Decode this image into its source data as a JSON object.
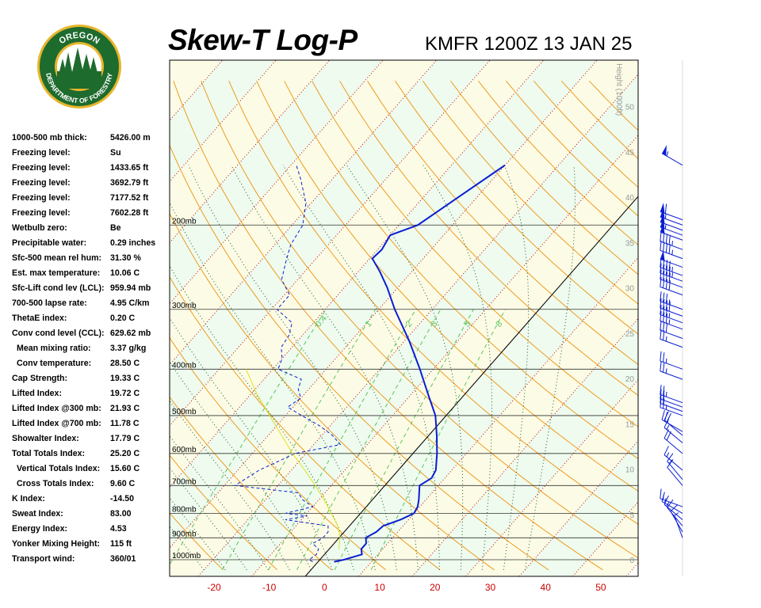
{
  "header": {
    "title": "Skew-T Log-P",
    "station": "KMFR 1200Z 13 JAN 25"
  },
  "logo": {
    "text_top": "OREGON",
    "text_bottom": "DEPARTMENT OF FORESTRY",
    "ring_color": "#1e6b2e",
    "gold_color": "#e7b52c"
  },
  "indices": [
    {
      "label": "1000-500 mb thick:",
      "value": "5426.00 m"
    },
    {
      "label": "Freezing level:",
      "value": "Su"
    },
    {
      "label": "Freezing level:",
      "value": "1433.65 ft"
    },
    {
      "label": "Freezing level:",
      "value": "3692.79 ft"
    },
    {
      "label": "Freezing level:",
      "value": "7177.52 ft"
    },
    {
      "label": "Freezing level:",
      "value": "7602.28 ft"
    },
    {
      "label": "Wetbulb zero:",
      "value": "Be"
    },
    {
      "label": "Precipitable water:",
      "value": "0.29 inches"
    },
    {
      "label": "Sfc-500 mean rel hum:",
      "value": "31.30 %"
    },
    {
      "label": "Est. max temperature:",
      "value": "10.06 C"
    },
    {
      "label": "Sfc-Lift cond lev (LCL):",
      "value": "959.94 mb"
    },
    {
      "label": "700-500 lapse rate:",
      "value": "4.95 C/km"
    },
    {
      "label": "ThetaE index:",
      "value": "0.20 C"
    },
    {
      "label": "Conv cond level (CCL):",
      "value": "629.62 mb"
    },
    {
      "label": "Mean mixing ratio:",
      "value": "3.37 g/kg",
      "indent": true
    },
    {
      "label": "Conv temperature:",
      "value": "28.50 C",
      "indent": true
    },
    {
      "label": "Cap Strength:",
      "value": "19.33 C"
    },
    {
      "label": "Lifted Index:",
      "value": "19.72 C"
    },
    {
      "label": "Lifted Index @300 mb:",
      "value": "21.93 C"
    },
    {
      "label": "Lifted Index @700 mb:",
      "value": "11.78 C"
    },
    {
      "label": "Showalter Index:",
      "value": "17.79 C"
    },
    {
      "label": "Total Totals Index:",
      "value": "25.20 C"
    },
    {
      "label": "Vertical Totals Index:",
      "value": "15.60 C",
      "indent": true
    },
    {
      "label": "Cross Totals Index:",
      "value": "9.60 C",
      "indent": true
    },
    {
      "label": "K Index:",
      "value": "-14.50"
    },
    {
      "label": "Sweat Index:",
      "value": "83.00"
    },
    {
      "label": "Energy Index:",
      "value": "4.53"
    },
    {
      "label": "Yonker Mixing Height:",
      "value": "115 ft"
    },
    {
      "label": "Transport wind:",
      "value": "360/01"
    }
  ],
  "chart_data": {
    "type": "line",
    "temperature_axis": {
      "ticks": [
        -20,
        -10,
        0,
        10,
        20,
        30,
        40,
        50
      ],
      "unit": "C",
      "color": "#cc0000"
    },
    "pressure_labels": [
      {
        "p": 200,
        "label": "200mb"
      },
      {
        "p": 300,
        "label": "300mb"
      },
      {
        "p": 400,
        "label": "400mb"
      },
      {
        "p": 500,
        "label": "500mb"
      },
      {
        "p": 600,
        "label": "600mb"
      },
      {
        "p": 700,
        "label": "700mb"
      },
      {
        "p": 800,
        "label": "800mb"
      },
      {
        "p": 900,
        "label": "900mb"
      },
      {
        "p": 1000,
        "label": "1000mb"
      }
    ],
    "height_axis": {
      "label": "Height (1000ft)",
      "ticks": [
        0,
        5,
        10,
        15,
        20,
        25,
        30,
        35,
        40,
        45,
        50
      ]
    },
    "mixing_ratio_labels": [
      "0.4",
      "1",
      "2",
      "3",
      "5",
      "8"
    ],
    "series": [
      {
        "name": "Temperature",
        "color": "#0a1ed2",
        "points": [
          {
            "p": 1010,
            "t": 3.0
          },
          {
            "p": 1000,
            "t": 4.5
          },
          {
            "p": 975,
            "t": 7.0
          },
          {
            "p": 950,
            "t": 6.0
          },
          {
            "p": 925,
            "t": 6.0
          },
          {
            "p": 900,
            "t": 5.0
          },
          {
            "p": 875,
            "t": 6.0
          },
          {
            "p": 850,
            "t": 6.3
          },
          {
            "p": 825,
            "t": 8.5
          },
          {
            "p": 800,
            "t": 10.0
          },
          {
            "p": 775,
            "t": 9.6
          },
          {
            "p": 750,
            "t": 8.7
          },
          {
            "p": 700,
            "t": 6.5
          },
          {
            "p": 675,
            "t": 7.5
          },
          {
            "p": 650,
            "t": 7.0
          },
          {
            "p": 600,
            "t": 4.5
          },
          {
            "p": 550,
            "t": 1.5
          },
          {
            "p": 500,
            "t": -2.0
          },
          {
            "p": 450,
            "t": -7.0
          },
          {
            "p": 400,
            "t": -12.5
          },
          {
            "p": 350,
            "t": -19.0
          },
          {
            "p": 300,
            "t": -27.0
          },
          {
            "p": 270,
            "t": -32.0
          },
          {
            "p": 250,
            "t": -36.0
          },
          {
            "p": 235,
            "t": -39.5
          },
          {
            "p": 225,
            "t": -39.2
          },
          {
            "p": 210,
            "t": -40.0
          },
          {
            "p": 200,
            "t": -36.5
          },
          {
            "p": 175,
            "t": -33.5
          },
          {
            "p": 150,
            "t": -30.0
          }
        ]
      },
      {
        "name": "Dewpoint",
        "color": "#0a1ed2",
        "dashed": true,
        "points": [
          {
            "p": 1010,
            "t": -1.0
          },
          {
            "p": 1000,
            "t": -2.0
          },
          {
            "p": 975,
            "t": -1.5
          },
          {
            "p": 950,
            "t": -2.0
          },
          {
            "p": 925,
            "t": -4.0
          },
          {
            "p": 900,
            "t": -3.0
          },
          {
            "p": 875,
            "t": -3.0
          },
          {
            "p": 850,
            "t": -4.0
          },
          {
            "p": 825,
            "t": -13.0
          },
          {
            "p": 810,
            "t": -9.5
          },
          {
            "p": 800,
            "t": -14.0
          },
          {
            "p": 775,
            "t": -10.0
          },
          {
            "p": 750,
            "t": -13.0
          },
          {
            "p": 725,
            "t": -15.0
          },
          {
            "p": 700,
            "t": -28.0
          },
          {
            "p": 650,
            "t": -26.0
          },
          {
            "p": 625,
            "t": -24.0
          },
          {
            "p": 600,
            "t": -22.0
          },
          {
            "p": 575,
            "t": -15.0
          },
          {
            "p": 550,
            "t": -18.0
          },
          {
            "p": 525,
            "t": -22.0
          },
          {
            "p": 500,
            "t": -27.0
          },
          {
            "p": 480,
            "t": -31.0
          },
          {
            "p": 460,
            "t": -30.0
          },
          {
            "p": 440,
            "t": -32.0
          },
          {
            "p": 420,
            "t": -33.0
          },
          {
            "p": 400,
            "t": -39.0
          },
          {
            "p": 380,
            "t": -40.0
          },
          {
            "p": 360,
            "t": -42.0
          },
          {
            "p": 340,
            "t": -42.5
          },
          {
            "p": 320,
            "t": -44.0
          },
          {
            "p": 300,
            "t": -49.0
          },
          {
            "p": 280,
            "t": -49.0
          },
          {
            "p": 260,
            "t": -53.0
          },
          {
            "p": 240,
            "t": -55.0
          },
          {
            "p": 220,
            "t": -57.0
          },
          {
            "p": 200,
            "t": -58.0
          },
          {
            "p": 180,
            "t": -61.0
          },
          {
            "p": 160,
            "t": -66.0
          },
          {
            "p": 150,
            "t": -69.0
          }
        ]
      },
      {
        "name": "Parcel",
        "color": "#e0e020",
        "points": [
          {
            "p": 950,
            "t": 1.8
          },
          {
            "p": 900,
            "t": 0.2
          },
          {
            "p": 850,
            "t": -2.2
          },
          {
            "p": 800,
            "t": -5.5
          },
          {
            "p": 750,
            "t": -9.0
          },
          {
            "p": 700,
            "t": -13.0
          },
          {
            "p": 650,
            "t": -17.5
          },
          {
            "p": 600,
            "t": -22.5
          },
          {
            "p": 550,
            "t": -27.5
          },
          {
            "p": 500,
            "t": -33.0
          },
          {
            "p": 450,
            "t": -39.0
          },
          {
            "p": 400,
            "t": -45.0
          }
        ]
      }
    ],
    "wind_barbs": [
      {
        "p": 150,
        "dir": 300,
        "kt": 55
      },
      {
        "p": 195,
        "dir": 290,
        "kt": 60
      },
      {
        "p": 200,
        "dir": 290,
        "kt": 55
      },
      {
        "p": 205,
        "dir": 290,
        "kt": 50
      },
      {
        "p": 210,
        "dir": 290,
        "kt": 55
      },
      {
        "p": 215,
        "dir": 290,
        "kt": 50
      },
      {
        "p": 225,
        "dir": 290,
        "kt": 45
      },
      {
        "p": 235,
        "dir": 290,
        "kt": 45
      },
      {
        "p": 245,
        "dir": 290,
        "kt": 50
      },
      {
        "p": 255,
        "dir": 290,
        "kt": 45
      },
      {
        "p": 262,
        "dir": 290,
        "kt": 45
      },
      {
        "p": 270,
        "dir": 290,
        "kt": 40
      },
      {
        "p": 280,
        "dir": 290,
        "kt": 40
      },
      {
        "p": 300,
        "dir": 290,
        "kt": 35
      },
      {
        "p": 310,
        "dir": 290,
        "kt": 40
      },
      {
        "p": 320,
        "dir": 290,
        "kt": 35
      },
      {
        "p": 330,
        "dir": 290,
        "kt": 35
      },
      {
        "p": 345,
        "dir": 290,
        "kt": 30
      },
      {
        "p": 360,
        "dir": 290,
        "kt": 25
      },
      {
        "p": 400,
        "dir": 290,
        "kt": 25
      },
      {
        "p": 420,
        "dir": 290,
        "kt": 25
      },
      {
        "p": 470,
        "dir": 290,
        "kt": 25
      },
      {
        "p": 480,
        "dir": 290,
        "kt": 20
      },
      {
        "p": 490,
        "dir": 290,
        "kt": 20
      },
      {
        "p": 500,
        "dir": 290,
        "kt": 25
      },
      {
        "p": 540,
        "dir": 300,
        "kt": 25
      },
      {
        "p": 550,
        "dir": 310,
        "kt": 20
      },
      {
        "p": 570,
        "dir": 310,
        "kt": 15
      },
      {
        "p": 600,
        "dir": 310,
        "kt": 20
      },
      {
        "p": 650,
        "dir": 310,
        "kt": 15
      },
      {
        "p": 680,
        "dir": 320,
        "kt": 15
      },
      {
        "p": 700,
        "dir": 320,
        "kt": 10
      },
      {
        "p": 775,
        "dir": 290,
        "kt": 15
      },
      {
        "p": 800,
        "dir": 300,
        "kt": 15
      },
      {
        "p": 825,
        "dir": 310,
        "kt": 15
      },
      {
        "p": 850,
        "dir": 320,
        "kt": 10
      },
      {
        "p": 875,
        "dir": 330,
        "kt": 10
      },
      {
        "p": 900,
        "dir": 340,
        "kt": 5
      }
    ]
  }
}
